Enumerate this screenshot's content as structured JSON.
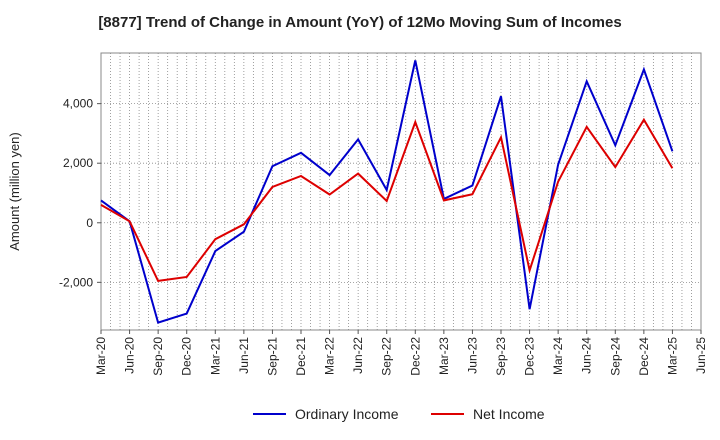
{
  "chart_data": {
    "type": "line",
    "title": "[8877]  Trend of Change in Amount (YoY) of 12Mo Moving Sum of Incomes",
    "ylabel": "Amount (million yen)",
    "xlabel": "",
    "x_ticks": [
      "Mar-20",
      "Jun-20",
      "Sep-20",
      "Dec-20",
      "Mar-21",
      "Jun-21",
      "Sep-21",
      "Dec-21",
      "Mar-22",
      "Jun-22",
      "Sep-22",
      "Dec-22",
      "Mar-23",
      "Jun-23",
      "Sep-23",
      "Dec-23",
      "Mar-24",
      "Jun-24",
      "Sep-24",
      "Dec-24",
      "Mar-25",
      "Jun-25"
    ],
    "y_ticks": [
      -2000,
      0,
      2000,
      4000
    ],
    "y_tick_labels": [
      "-2,000",
      "0",
      "2,000",
      "4,000"
    ],
    "ylim": [
      -3600,
      5700
    ],
    "grid": true,
    "legend_position": "bottom-center",
    "series": [
      {
        "name": "Ordinary Income",
        "color": "#0000cc",
        "values": [
          750,
          50,
          -3350,
          -3050,
          -950,
          -300,
          1900,
          2350,
          1600,
          2800,
          1100,
          5450,
          800,
          1250,
          4250,
          -2900,
          1950,
          4750,
          2600,
          5150,
          2400
        ]
      },
      {
        "name": "Net Income",
        "color": "#dd0000",
        "values": [
          600,
          50,
          -1950,
          -1820,
          -550,
          -50,
          1200,
          1570,
          950,
          1650,
          730,
          3380,
          750,
          960,
          2870,
          -1600,
          1380,
          3220,
          1870,
          3460,
          1830
        ]
      }
    ]
  }
}
